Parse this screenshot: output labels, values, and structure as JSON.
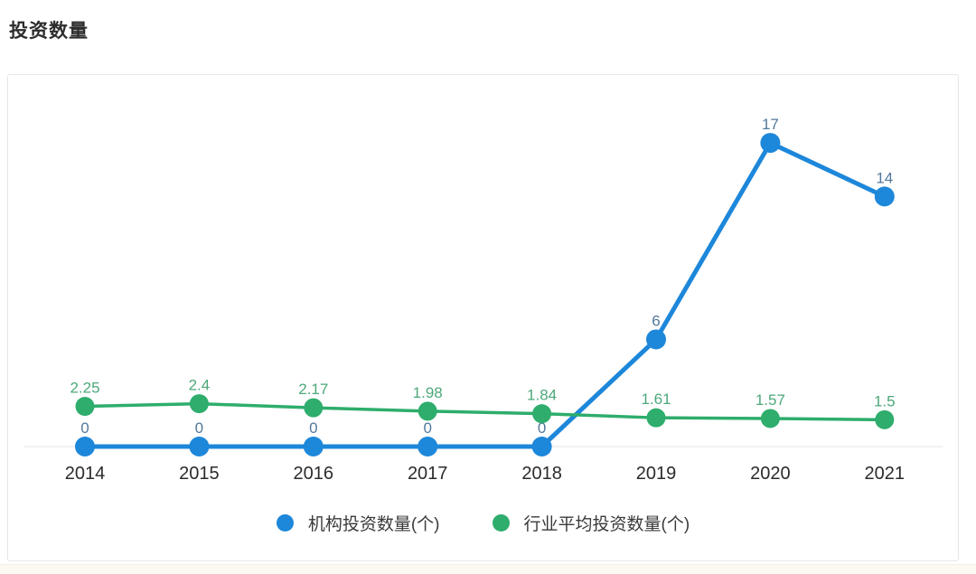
{
  "page": {
    "title": "投资数量"
  },
  "colors": {
    "series1": "#1d87da",
    "series1_label": "#52799c",
    "series2": "#2ead6c",
    "series2_label": "#4da87a",
    "axis_line": "#ededed",
    "year_label": "#2b2b2b",
    "legend_text": "#3a3a3a",
    "card_border": "#e5e6e8",
    "bottom_strip": "#fbf9f2"
  },
  "chart_data": {
    "type": "line",
    "title": "投资数量",
    "xlabel": "",
    "ylabel": "",
    "categories": [
      "2014",
      "2015",
      "2016",
      "2017",
      "2018",
      "2019",
      "2020",
      "2021"
    ],
    "series": [
      {
        "name": "机构投资数量(个)",
        "color": "#1d87da",
        "label_color": "#52799c",
        "values": [
          0,
          0,
          0,
          0,
          0,
          6,
          17,
          14
        ],
        "labels": [
          "0",
          "0",
          "0",
          "0",
          "0",
          "6",
          "17",
          "14"
        ]
      },
      {
        "name": "行业平均投资数量(个)",
        "color": "#2ead6c",
        "label_color": "#4da87a",
        "values": [
          2.25,
          2.4,
          2.17,
          1.98,
          1.84,
          1.61,
          1.57,
          1.5
        ],
        "labels": [
          "2.25",
          "2.4",
          "2.17",
          "1.98",
          "1.84",
          "1.61",
          "1.57",
          "1.5"
        ]
      }
    ],
    "ylim": [
      0,
      20
    ],
    "grid": false,
    "data_labels": true,
    "legend_position": "bottom"
  }
}
